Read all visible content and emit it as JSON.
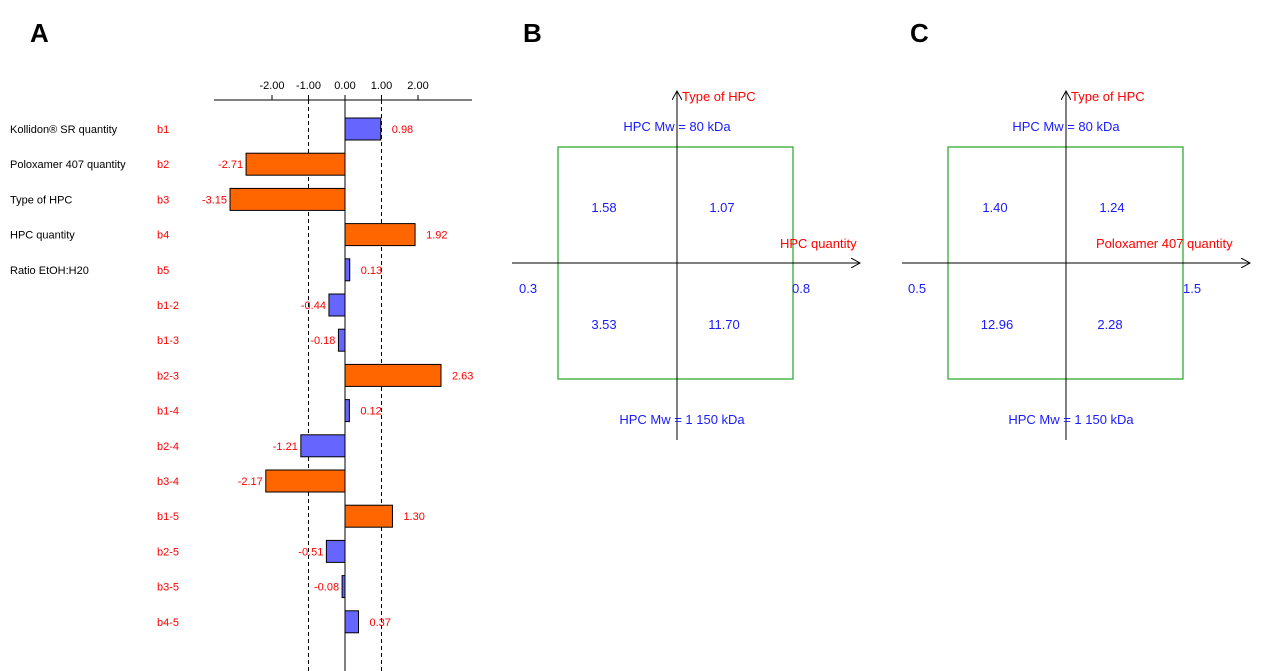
{
  "colors": {
    "label_red": "#ff0000",
    "value_blue": "#1a1aff",
    "bar_positive_significant": "#ff6600",
    "bar_nonsignificant": "#6666ff",
    "square_green": "#33aa33",
    "axis_black": "#000000"
  },
  "panels": {
    "A": "A",
    "B": "B",
    "C": "C"
  },
  "chart_data": [
    {
      "type": "bar",
      "orientation": "horizontal",
      "panel": "A",
      "ticks": [
        {
          "value": -2.0,
          "label": "-2.00"
        },
        {
          "value": -1.0,
          "label": "-1.00"
        },
        {
          "value": 0.0,
          "label": "0.00"
        },
        {
          "value": 1.0,
          "label": "1.00"
        },
        {
          "value": 2.0,
          "label": "2.00"
        }
      ],
      "xlim": [
        -3.7,
        3.4
      ],
      "significance_limits": [
        -1.0,
        1.0
      ],
      "rows": [
        {
          "factor": "Kollidon® SR quantity",
          "coef": "b1",
          "value": 0.98,
          "label": "0.98",
          "significant": false
        },
        {
          "factor": "Poloxamer 407 quantity",
          "coef": "b2",
          "value": -2.71,
          "label": "-2.71",
          "significant": true
        },
        {
          "factor": "Type of HPC",
          "coef": "b3",
          "value": -3.15,
          "label": "-3.15",
          "significant": true
        },
        {
          "factor": "HPC quantity",
          "coef": "b4",
          "value": 1.92,
          "label": "1.92",
          "significant": true
        },
        {
          "factor": "Ratio EtOH:H20",
          "coef": "b5",
          "value": 0.13,
          "label": "0.13",
          "significant": false
        },
        {
          "factor": "",
          "coef": "b1-2",
          "value": -0.44,
          "label": "-0.44",
          "significant": false
        },
        {
          "factor": "",
          "coef": "b1-3",
          "value": -0.18,
          "label": "-0.18",
          "significant": false
        },
        {
          "factor": "",
          "coef": "b2-3",
          "value": 2.63,
          "label": "2.63",
          "significant": true
        },
        {
          "factor": "",
          "coef": "b1-4",
          "value": 0.12,
          "label": "0.12",
          "significant": false
        },
        {
          "factor": "",
          "coef": "b2-4",
          "value": -1.21,
          "label": "-1.21",
          "significant": false
        },
        {
          "factor": "",
          "coef": "b3-4",
          "value": -2.17,
          "label": "-2.17",
          "significant": true
        },
        {
          "factor": "",
          "coef": "b1-5",
          "value": 1.3,
          "label": "1.30",
          "significant": true
        },
        {
          "factor": "",
          "coef": "b2-5",
          "value": -0.51,
          "label": "-0.51",
          "significant": false
        },
        {
          "factor": "",
          "coef": "b3-5",
          "value": -0.08,
          "label": "-0.08",
          "significant": false
        },
        {
          "factor": "",
          "coef": "b4-5",
          "value": 0.37,
          "label": "0.37",
          "significant": false
        }
      ]
    },
    {
      "type": "table",
      "panel": "B",
      "vertical_axis_label": "Type of HPC",
      "top_label": "HPC Mw = 80 kDa",
      "bottom_label": "HPC Mw = 1 150 kDa",
      "horizontal_axis_label": "HPC quantity",
      "x_min_label": "0.3",
      "x_max_label": "0.8",
      "cells": {
        "top_left": "1.58",
        "top_right": "1.07",
        "bottom_left": "3.53",
        "bottom_right": "11.70"
      }
    },
    {
      "type": "table",
      "panel": "C",
      "vertical_axis_label": "Type of HPC",
      "top_label": "HPC Mw = 80 kDa",
      "bottom_label": "HPC Mw = 1 150 kDa",
      "horizontal_axis_label": "Poloxamer 407 quantity",
      "x_min_label": "0.5",
      "x_max_label": "1.5",
      "cells": {
        "top_left": "1.40",
        "top_right": "1.24",
        "bottom_left": "12.96",
        "bottom_right": "2.28"
      }
    }
  ]
}
